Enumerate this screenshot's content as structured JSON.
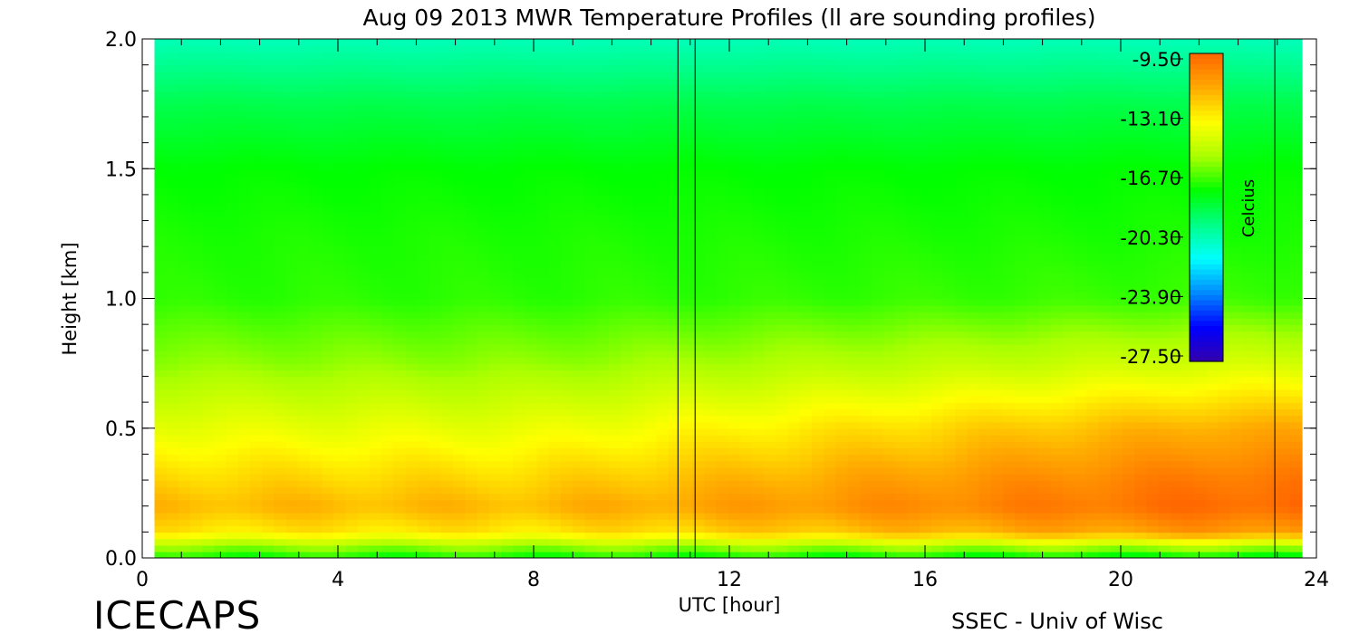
{
  "chart_data": {
    "type": "heatmap",
    "title": "Aug 09 2013 MWR Temperature Profiles (ll are sounding profiles)",
    "xlabel": "UTC [hour]",
    "ylabel": "Height [km]",
    "xlim": [
      0,
      24
    ],
    "ylim": [
      0,
      2.0
    ],
    "xticks": [
      "0",
      "4",
      "8",
      "12",
      "16",
      "20",
      "24"
    ],
    "yticks": [
      "0.0",
      "0.5",
      "1.0",
      "1.5",
      "2.0"
    ],
    "data_start_hour": 0.25,
    "data_end_hour": 23.7,
    "sounding_times_hour": [
      10.95,
      11.3,
      23.15
    ],
    "colorbar": {
      "label": "Celcius",
      "ticks": [
        "-9.50",
        "-13.10",
        "-16.70",
        "-20.30",
        "-23.90",
        "-27.50"
      ],
      "min": -27.5,
      "max": -9.5,
      "colors": [
        "#3300aa",
        "#0000ff",
        "#0088ff",
        "#00ffff",
        "#00ff88",
        "#00ff00",
        "#aaff00",
        "#ffff00",
        "#ffaa00",
        "#ff6600"
      ]
    },
    "profile": {
      "heights_km": [
        0.0,
        0.05,
        0.1,
        0.2,
        0.3,
        0.5,
        0.75,
        1.0,
        1.25,
        1.5,
        1.75,
        1.9,
        2.0
      ],
      "temps_c_early": [
        -17.5,
        -15.5,
        -13.0,
        -11.8,
        -12.5,
        -14.0,
        -15.8,
        -17.0,
        -17.2,
        -17.5,
        -18.6,
        -19.6,
        -20.3
      ],
      "temps_c_late": [
        -18.0,
        -15.0,
        -11.0,
        -9.6,
        -10.0,
        -11.5,
        -14.5,
        -16.8,
        -17.2,
        -17.5,
        -18.6,
        -19.6,
        -20.3
      ]
    }
  },
  "labels": {
    "branding_left": "ICECAPS",
    "branding_right": "SSEC - Univ of Wisc"
  }
}
